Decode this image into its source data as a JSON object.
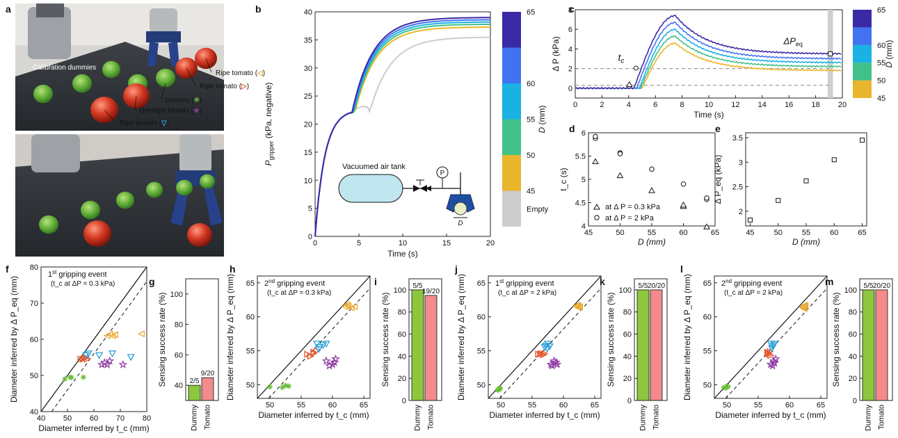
{
  "panel_labels": [
    "a",
    "b",
    "c",
    "d",
    "e",
    "f",
    "g",
    "h",
    "i",
    "j",
    "k",
    "l",
    "m"
  ],
  "photo": {
    "calibration": "Calibration dummies",
    "items": [
      {
        "label": "Ripe tomato (",
        "symbol": "◁",
        "close": ")",
        "color": "#e8a82a"
      },
      {
        "label": "Ripe tomato (",
        "symbol": "▷",
        "close": ")",
        "color": "#e2562a"
      },
      {
        "label": "Dummy (",
        "symbol": "✳",
        "close": ")",
        "color": "#6cbd3a"
      },
      {
        "label": "Overripe tomato (",
        "symbol": "★",
        "close": ")",
        "color": "#8e3aa0"
      },
      {
        "label": "Ripe tomato (",
        "symbol": "▽",
        "close": ")",
        "color": "#2ba0d6"
      }
    ]
  },
  "colorbar": {
    "label": "D (mm)",
    "levels": [
      {
        "label": "Empty",
        "color": "#cccccc"
      },
      {
        "label": "45",
        "color": "#e9b52c"
      },
      {
        "label": "50",
        "color": "#40c187"
      },
      {
        "label": "55",
        "color": "#1ab1e3"
      },
      {
        "label": "60",
        "color": "#4173f0"
      },
      {
        "label": "65",
        "color": "#3a2aa6"
      }
    ]
  },
  "chart_data": [
    {
      "id": "b",
      "type": "line",
      "xlabel": "Time (s)",
      "ylabel": "P_gripper (kPa, negative)",
      "xlim": [
        0,
        20
      ],
      "ylim": [
        0,
        40
      ],
      "xticks": [
        "0",
        "5",
        "10",
        "15",
        "20"
      ],
      "yticks": [
        "0",
        "5",
        "10",
        "15",
        "20",
        "25",
        "30",
        "35",
        "40"
      ],
      "inset": {
        "tank": "Vacuumed air tank",
        "gauge": "P",
        "dim": "D"
      },
      "series": [
        {
          "name": "Empty",
          "color": "#cccccc",
          "final": 35.5
        },
        {
          "name": "45",
          "color": "#e9b52c",
          "final": 37.3
        },
        {
          "name": "50",
          "color": "#40c187",
          "final": 37.8
        },
        {
          "name": "55",
          "color": "#1ab1e3",
          "final": 38.2
        },
        {
          "name": "60",
          "color": "#4173f0",
          "final": 38.6
        },
        {
          "name": "65",
          "color": "#3a2aa6",
          "final": 39.0
        }
      ]
    },
    {
      "id": "c",
      "type": "line",
      "xlabel": "Time (s)",
      "ylabel": "Δ P (kPa)",
      "xlim": [
        0,
        20
      ],
      "ylim": [
        -1,
        8
      ],
      "xticks": [
        "0",
        "2",
        "4",
        "6",
        "8",
        "10",
        "12",
        "14",
        "16",
        "18",
        "20"
      ],
      "yticks": [
        "0",
        "2",
        "4",
        "6",
        "8"
      ],
      "annotations": {
        "tc": "t",
        "tc_sub": "c",
        "dpeq": "ΔP",
        "dpeq_sub": "eq"
      },
      "series": [
        {
          "name": "45",
          "color": "#e9b52c",
          "start": 5.0,
          "peak": 4.6,
          "final": 1.8
        },
        {
          "name": "50",
          "color": "#40c187",
          "start": 4.9,
          "peak": 5.3,
          "final": 2.2
        },
        {
          "name": "55",
          "color": "#1ab1e3",
          "start": 4.8,
          "peak": 6.0,
          "final": 2.6
        },
        {
          "name": "60",
          "color": "#4173f0",
          "start": 4.6,
          "peak": 6.7,
          "final": 3.0
        },
        {
          "name": "65",
          "color": "#3a2aa6",
          "start": 4.4,
          "peak": 7.4,
          "final": 3.5
        }
      ]
    },
    {
      "id": "d",
      "type": "scatter",
      "xlabel": "D (mm)",
      "ylabel": "t_c (s)",
      "xlim": [
        45,
        65
      ],
      "ylim": [
        4,
        6
      ],
      "xticks": [
        "45",
        "50",
        "55",
        "60",
        "65"
      ],
      "yticks": [
        "4",
        "4.5",
        "5",
        "5.5",
        "6"
      ],
      "legend": [
        "at  Δ P = 0.3 kPa",
        "at  Δ P = 2 kPa"
      ],
      "triangles": [
        [
          45,
          5.38
        ],
        [
          50,
          5.08
        ],
        [
          55,
          4.76
        ],
        [
          60,
          4.42
        ],
        [
          60,
          4.45
        ],
        [
          65,
          3.98
        ]
      ],
      "circles": [
        [
          45,
          5.88
        ],
        [
          45,
          5.92
        ],
        [
          50,
          5.57
        ],
        [
          50,
          5.55
        ],
        [
          55,
          5.22
        ],
        [
          60,
          4.9
        ],
        [
          65,
          4.57
        ],
        [
          65,
          4.6
        ]
      ]
    },
    {
      "id": "e",
      "type": "scatter",
      "xlabel": "D (mm)",
      "ylabel": "Δ P_eq (kPa)",
      "xlim": [
        45,
        65
      ],
      "ylim": [
        1.8,
        3.5
      ],
      "xticks": [
        "45",
        "50",
        "55",
        "60",
        "65"
      ],
      "yticks": [
        "2",
        "2.5",
        "3",
        "3.5"
      ],
      "squares": [
        [
          45,
          1.82
        ],
        [
          50,
          2.22
        ],
        [
          55,
          2.62
        ],
        [
          60,
          3.05
        ],
        [
          65,
          3.45
        ]
      ]
    }
  ],
  "scatter_panels": [
    {
      "id": "f",
      "title": "1st gripping event",
      "title_sup_pre": "1",
      "title_sup": "st",
      "title_rest": " gripping event",
      "subtitle": "(t_c at ΔP = 0.3 kPa)",
      "xlabel": "Diameter inferred by t_c (mm)",
      "ylabel": "Diameter inferred by Δ P_eq (mm)",
      "xlim": [
        40,
        80
      ],
      "ylim": [
        40,
        80
      ],
      "xticks": [
        "40",
        "50",
        "60",
        "70",
        "80"
      ],
      "yticks": [
        "40",
        "50",
        "60",
        "70",
        "80"
      ],
      "points": {
        "dummy": [
          [
            49,
            49
          ],
          [
            51,
            49.5
          ],
          [
            56,
            49.5
          ],
          [
            51.5,
            49.4
          ]
        ],
        "ripe_left": [
          [
            65,
            61
          ],
          [
            66,
            61.4
          ],
          [
            67,
            61
          ],
          [
            68,
            61.3
          ],
          [
            78,
            61.5
          ]
        ],
        "ripe_right": [
          [
            55,
            54.5
          ],
          [
            56,
            54.5
          ],
          [
            57,
            55
          ],
          [
            56.5,
            54.7
          ],
          [
            57.5,
            54.5
          ]
        ],
        "overripe": [
          [
            63,
            53
          ],
          [
            64,
            53.5
          ],
          [
            65,
            53
          ],
          [
            66,
            54
          ],
          [
            71,
            53
          ]
        ],
        "ripe_down": [
          [
            57,
            55.5
          ],
          [
            58,
            56
          ],
          [
            62,
            55.5
          ],
          [
            67,
            56
          ],
          [
            74,
            55
          ]
        ]
      }
    },
    {
      "id": "h",
      "title_sup_pre": "2",
      "title_sup": "nd",
      "title_rest": " gripping event",
      "subtitle": "(t_c at ΔP = 0.3 kPa)",
      "xlabel": "Diameter inferred by t_c (mm)",
      "ylabel": "Diameter inferred by Δ P_eq (mm)",
      "xlim": [
        48,
        66
      ],
      "ylim": [
        48,
        66
      ],
      "xticks": [
        "50",
        "55",
        "60",
        "65"
      ],
      "yticks": [
        "50",
        "55",
        "60",
        "65"
      ],
      "points": {
        "dummy": [
          [
            50,
            49.7
          ],
          [
            52,
            49.6
          ],
          [
            52.5,
            49.9
          ],
          [
            53,
            49.8
          ]
        ],
        "ripe_left": [
          [
            62,
            61.5
          ],
          [
            62.5,
            61.6
          ],
          [
            63,
            61.3
          ],
          [
            62.3,
            61.8
          ],
          [
            63.5,
            61.5
          ]
        ],
        "ripe_right": [
          [
            56,
            54.5
          ],
          [
            57,
            54.8
          ],
          [
            56.5,
            54.2
          ],
          [
            57.5,
            55
          ],
          [
            57,
            54.6
          ]
        ],
        "overripe": [
          [
            59,
            53.5
          ],
          [
            60,
            53
          ],
          [
            60.5,
            53.8
          ],
          [
            59.5,
            52.8
          ],
          [
            60.3,
            53.3
          ]
        ],
        "ripe_down": [
          [
            57.5,
            56
          ],
          [
            58,
            55.5
          ],
          [
            58.5,
            55.8
          ],
          [
            59,
            56
          ],
          [
            57.8,
            55.2
          ]
        ]
      }
    },
    {
      "id": "j",
      "title_sup_pre": "1",
      "title_sup": "st",
      "title_rest": " gripping event",
      "subtitle": "(t_c at ΔP = 2 kPa)",
      "xlabel": "Diameter inferred by t_c (mm)",
      "ylabel": "Diameter inferred by Δ P_eq (mm)",
      "xlim": [
        48,
        66
      ],
      "ylim": [
        48,
        66
      ],
      "xticks": [
        "50",
        "55",
        "60",
        "65"
      ],
      "yticks": [
        "50",
        "55",
        "60",
        "65"
      ],
      "points": {
        "dummy": [
          [
            49.5,
            49.3
          ],
          [
            49.8,
            49.5
          ],
          [
            49.6,
            49.2
          ],
          [
            49.9,
            49.4
          ]
        ],
        "ripe_left": [
          [
            62,
            61.5
          ],
          [
            62.3,
            61.6
          ],
          [
            62.5,
            61.4
          ],
          [
            62.2,
            61.7
          ],
          [
            62.6,
            61.5
          ]
        ],
        "ripe_right": [
          [
            56,
            54.5
          ],
          [
            56.5,
            54.6
          ],
          [
            56.8,
            54.4
          ],
          [
            56.3,
            54.5
          ],
          [
            57,
            54.6
          ]
        ],
        "overripe": [
          [
            58,
            53
          ],
          [
            58.5,
            53.5
          ],
          [
            58.2,
            52.8
          ],
          [
            59,
            53
          ],
          [
            58.8,
            53.3
          ]
        ],
        "ripe_down": [
          [
            57,
            55.5
          ],
          [
            57.5,
            56
          ],
          [
            57.2,
            55.7
          ],
          [
            57.8,
            55.6
          ],
          [
            57.4,
            55.3
          ]
        ]
      }
    },
    {
      "id": "l",
      "title_sup_pre": "2",
      "title_sup": "nd",
      "title_rest": " gripping event",
      "subtitle": "(t_c at ΔP = 2 kPa)",
      "xlabel": "Diameter inferred by t_c (mm)",
      "ylabel": "Diameter inferred by Δ P_eq (mm)",
      "xlim": [
        48,
        66
      ],
      "ylim": [
        48,
        66
      ],
      "xticks": [
        "50",
        "55",
        "60",
        "65"
      ],
      "yticks": [
        "50",
        "55",
        "60",
        "65"
      ],
      "points": {
        "dummy": [
          [
            49.5,
            49.6
          ],
          [
            50,
            49.8
          ],
          [
            49.8,
            49.5
          ],
          [
            50.2,
            49.7
          ]
        ],
        "ripe_left": [
          [
            62.2,
            61.5
          ],
          [
            62.4,
            61.7
          ],
          [
            62.3,
            61.2
          ],
          [
            62.5,
            61.6
          ],
          [
            62.1,
            61.4
          ]
        ],
        "ripe_right": [
          [
            56.5,
            54.8
          ],
          [
            56.8,
            54.5
          ],
          [
            57,
            54.3
          ],
          [
            56.6,
            54.6
          ],
          [
            56.9,
            54.9
          ]
        ],
        "overripe": [
          [
            57,
            53
          ],
          [
            57.5,
            53.5
          ],
          [
            57.8,
            53.8
          ],
          [
            57.3,
            52.8
          ],
          [
            57.6,
            53.2
          ]
        ],
        "ripe_down": [
          [
            57,
            56
          ],
          [
            57.3,
            55.6
          ],
          [
            57.5,
            55.8
          ],
          [
            57.2,
            55.3
          ],
          [
            57.6,
            56
          ]
        ]
      }
    }
  ],
  "bar_panels": [
    {
      "id": "g",
      "ylabel": "Sensing success rate (%)",
      "yticks": [
        "40",
        "60",
        "80",
        "100"
      ],
      "ylim": [
        30,
        110
      ],
      "bars": [
        {
          "name": "Dummy",
          "value": 40,
          "label": "2/5",
          "color": "#8dc63f"
        },
        {
          "name": "Tomato",
          "value": 45,
          "label": "9/20",
          "color": "#f28b8b"
        }
      ]
    },
    {
      "id": "i",
      "ylabel": "Sensing success rate (%)",
      "yticks": [
        "0",
        "20",
        "40",
        "60",
        "80",
        "100"
      ],
      "ylim": [
        0,
        110
      ],
      "bars": [
        {
          "name": "Dummy",
          "value": 100,
          "label": "5/5",
          "color": "#8dc63f"
        },
        {
          "name": "Tomato",
          "value": 95,
          "label": "19/20",
          "color": "#f28b8b"
        }
      ]
    },
    {
      "id": "k",
      "ylabel": "Sensing success rate (%)",
      "yticks": [
        "0",
        "20",
        "40",
        "60",
        "80",
        "100"
      ],
      "ylim": [
        0,
        110
      ],
      "bars": [
        {
          "name": "Dummy",
          "value": 100,
          "label": "5/5",
          "color": "#8dc63f"
        },
        {
          "name": "Tomato",
          "value": 100,
          "label": "20/20",
          "color": "#f28b8b"
        }
      ]
    },
    {
      "id": "m",
      "ylabel": "Sensing success rate (%)",
      "yticks": [
        "0",
        "20",
        "40",
        "60",
        "80",
        "100"
      ],
      "ylim": [
        0,
        110
      ],
      "bars": [
        {
          "name": "Dummy",
          "value": 100,
          "label": "5/5",
          "color": "#8dc63f"
        },
        {
          "name": "Tomato",
          "value": 100,
          "label": "20/20",
          "color": "#f28b8b"
        }
      ]
    }
  ]
}
